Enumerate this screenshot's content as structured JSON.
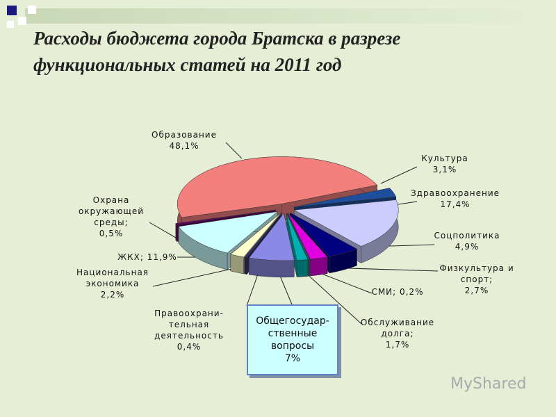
{
  "chart_data": {
    "type": "pie3d",
    "title": "Расходы бюджета города Братска в разрезе\nфункциональных статей на 2011 год",
    "categories": [
      "Образование",
      "Культура",
      "Здравоохранение",
      "Соцполитика",
      "Физкультура и\nспорт;",
      "СМИ;",
      "Обслуживание\nдолга;",
      "Общегосудар-\nственные\nвопросы",
      "Правоохрани-\nтельная\nдеятельность",
      "Национальная\nэкономика",
      "ЖКХ;",
      "Охрана\nокружающей\nсреды;"
    ],
    "values": [
      48.1,
      3.1,
      17.4,
      4.9,
      2.7,
      0.2,
      1.7,
      7,
      0.4,
      2.2,
      11.9,
      0.5
    ],
    "value_labels": [
      "48,1%",
      "3,1%",
      "17,4%",
      "4,9%",
      "2,7%",
      "0,2%",
      "1,7%",
      "7%",
      "0,4%",
      "2,2%",
      "11,9%",
      "0,5%"
    ],
    "colors": [
      "#f4807e",
      "#1f4f9c",
      "#ccccff",
      "#000080",
      "#e000e0",
      "#007f7f",
      "#00b0b0",
      "#8a8ae6",
      "#333366",
      "#ffffcc",
      "#ccffff",
      "#660066"
    ]
  },
  "watermark": "MyShared"
}
